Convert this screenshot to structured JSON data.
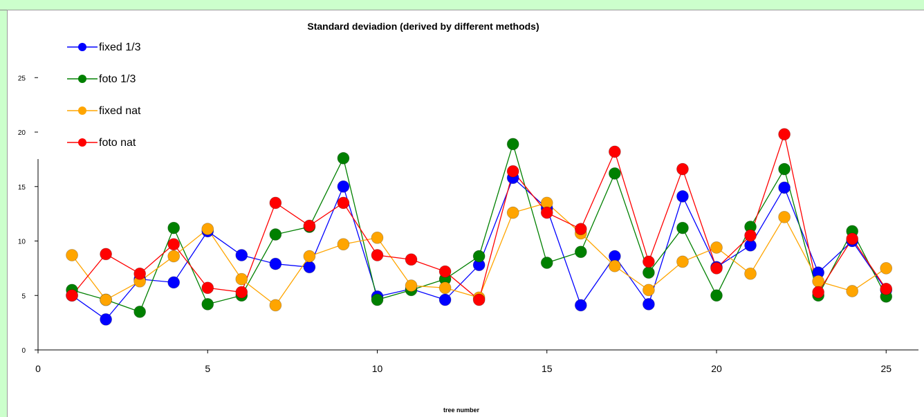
{
  "chart_data": {
    "type": "line",
    "title": "Standard deviadion (derived by different methods)",
    "xlabel": "tree number",
    "ylabel": "",
    "xlim": [
      0,
      26
    ],
    "ylim": [
      0,
      25
    ],
    "x_ticks": [
      "0",
      "5",
      "10",
      "15",
      "20",
      "25"
    ],
    "y_ticks": [
      "0",
      "5",
      "10",
      "15",
      "20",
      "25"
    ],
    "x": [
      1,
      2,
      3,
      4,
      5,
      6,
      7,
      8,
      9,
      10,
      11,
      12,
      13,
      14,
      15,
      16,
      17,
      18,
      19,
      20,
      21,
      22,
      23,
      24,
      25
    ],
    "legend_position": "top-left",
    "grid": false,
    "series": [
      {
        "name": "fixed 1/3",
        "color": "#0000ff",
        "values": [
          5.0,
          2.8,
          6.5,
          6.2,
          10.9,
          8.7,
          7.9,
          7.6,
          15.0,
          4.9,
          5.6,
          4.6,
          7.8,
          15.8,
          13.0,
          4.1,
          8.6,
          4.2,
          14.1,
          7.6,
          9.6,
          14.9,
          7.1,
          10.0,
          5.5
        ]
      },
      {
        "name": "foto 1/3",
        "color": "#008000",
        "values": [
          5.5,
          4.6,
          3.5,
          11.2,
          4.2,
          5.0,
          10.6,
          11.3,
          17.6,
          4.6,
          5.5,
          6.5,
          8.6,
          18.9,
          8.0,
          9.0,
          16.2,
          7.1,
          11.2,
          5.0,
          11.3,
          16.6,
          5.0,
          10.9,
          4.9
        ]
      },
      {
        "name": "fixed nat",
        "color": "#ffa500",
        "values": [
          8.7,
          4.6,
          6.3,
          8.6,
          11.1,
          6.5,
          4.1,
          8.6,
          9.7,
          10.3,
          5.9,
          5.7,
          4.8,
          12.6,
          13.5,
          10.7,
          7.7,
          5.5,
          8.1,
          9.4,
          7.0,
          12.2,
          6.3,
          5.4,
          7.5
        ]
      },
      {
        "name": "foto nat",
        "color": "#ff0000",
        "values": [
          5.0,
          8.8,
          7.0,
          9.7,
          5.7,
          5.3,
          13.5,
          11.4,
          13.5,
          8.7,
          8.3,
          7.2,
          4.6,
          16.4,
          12.6,
          11.1,
          18.2,
          8.1,
          16.6,
          7.5,
          10.5,
          19.8,
          5.3,
          10.2,
          5.6
        ]
      }
    ]
  }
}
